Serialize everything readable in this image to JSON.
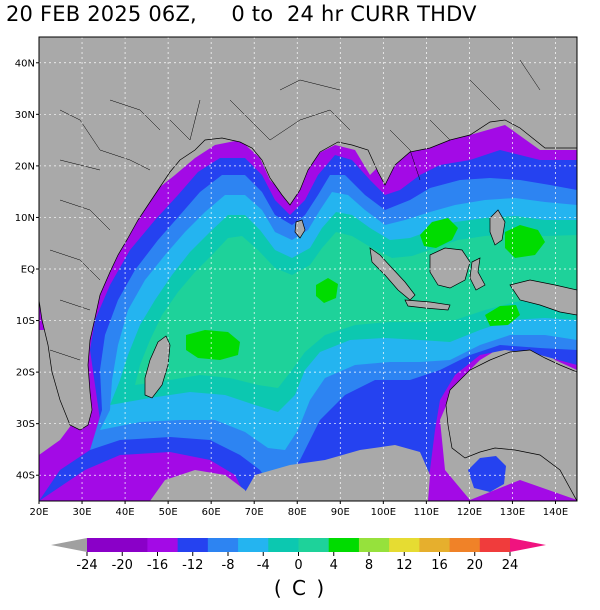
{
  "title": {
    "date": "20 FEB 2025 06Z,",
    "range": "0 to  24 hr",
    "field": "CURR THDV"
  },
  "map": {
    "lon_range": [
      20,
      145
    ],
    "lat_range": [
      -45,
      45
    ],
    "lat_labels": [
      {
        "value": 40,
        "text": "40N"
      },
      {
        "value": 30,
        "text": "30N"
      },
      {
        "value": 20,
        "text": "20N"
      },
      {
        "value": 10,
        "text": "10N"
      },
      {
        "value": 0,
        "text": "EQ"
      },
      {
        "value": -10,
        "text": "10S"
      },
      {
        "value": -20,
        "text": "20S"
      },
      {
        "value": -30,
        "text": "30S"
      },
      {
        "value": -40,
        "text": "40S"
      }
    ],
    "lon_labels": [
      {
        "value": 20,
        "text": "20E"
      },
      {
        "value": 30,
        "text": "30E"
      },
      {
        "value": 40,
        "text": "40E"
      },
      {
        "value": 50,
        "text": "50E"
      },
      {
        "value": 60,
        "text": "60E"
      },
      {
        "value": 70,
        "text": "70E"
      },
      {
        "value": 80,
        "text": "80E"
      },
      {
        "value": 90,
        "text": "90E"
      },
      {
        "value": 100,
        "text": "100E"
      },
      {
        "value": 110,
        "text": "110E"
      },
      {
        "value": 120,
        "text": "120E"
      },
      {
        "value": 130,
        "text": "130E"
      },
      {
        "value": 140,
        "text": "140E"
      }
    ],
    "land_color": "#a9a9a9",
    "grid_lines": "dashed white"
  },
  "colorbar": {
    "labels": [
      "-24",
      "-20",
      "-16",
      "-12",
      "-8",
      "-4",
      "0",
      "4",
      "8",
      "12",
      "16",
      "20",
      "24"
    ],
    "low_end_color": "#a0a0a0",
    "high_end_color": "#f0137f",
    "colors": [
      "#8a00c8",
      "#8a00c8",
      "#a30ae6",
      "#2542f0",
      "#2d84f2",
      "#24b4f0",
      "#0cc8b0",
      "#1ed29a",
      "#00dc00",
      "#96e13c",
      "#e6dc32",
      "#e6af2d",
      "#f08228",
      "#f03c3c"
    ],
    "units": "( C )"
  }
}
